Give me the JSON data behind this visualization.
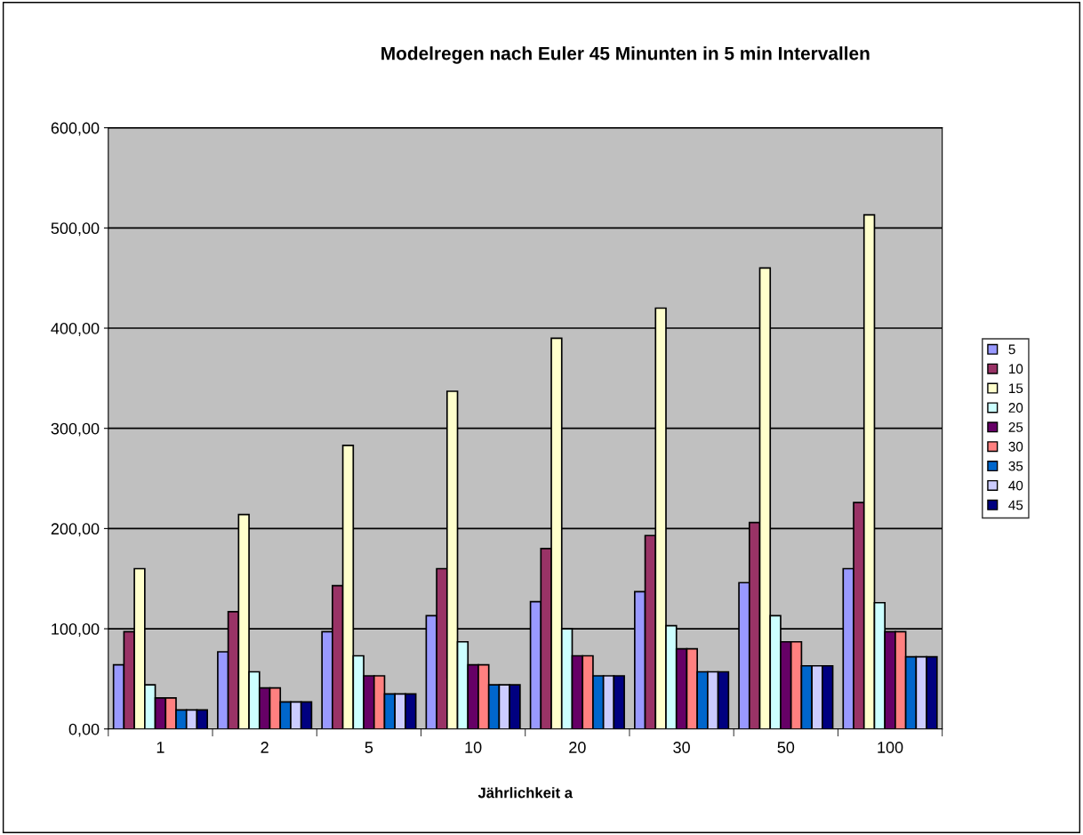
{
  "chart_data": {
    "type": "bar",
    "title": "Modelregen nach Euler 45 Minunten in 5 min Intervallen",
    "xlabel": "Jährlichkeit a",
    "categories": [
      "1",
      "2",
      "5",
      "10",
      "20",
      "30",
      "50",
      "100"
    ],
    "series": [
      {
        "name": "5",
        "color": "#9999ff",
        "values": [
          64,
          77,
          97,
          113,
          127,
          137,
          146,
          160
        ]
      },
      {
        "name": "10",
        "color": "#993366",
        "values": [
          97,
          117,
          143,
          160,
          180,
          193,
          206,
          226
        ]
      },
      {
        "name": "15",
        "color": "#ffffcc",
        "values": [
          160,
          214,
          283,
          337,
          390,
          420,
          460,
          513
        ]
      },
      {
        "name": "20",
        "color": "#ccffff",
        "values": [
          44,
          57,
          73,
          87,
          100,
          103,
          113,
          126
        ]
      },
      {
        "name": "25",
        "color": "#660066",
        "values": [
          31,
          41,
          53,
          64,
          73,
          80,
          87,
          97
        ]
      },
      {
        "name": "30",
        "color": "#ff8080",
        "values": [
          31,
          41,
          53,
          64,
          73,
          80,
          87,
          97
        ]
      },
      {
        "name": "35",
        "color": "#0066cc",
        "values": [
          19,
          27,
          35,
          44,
          53,
          57,
          63,
          72
        ]
      },
      {
        "name": "40",
        "color": "#ccccff",
        "values": [
          19,
          27,
          35,
          44,
          53,
          57,
          63,
          72
        ]
      },
      {
        "name": "45",
        "color": "#000080",
        "values": [
          19,
          27,
          35,
          44,
          53,
          57,
          63,
          72
        ]
      }
    ],
    "ylim": [
      0,
      600
    ],
    "yticks": [
      {
        "value": 0,
        "label": "0,00"
      },
      {
        "value": 100,
        "label": "100,00"
      },
      {
        "value": 200,
        "label": "200,00"
      },
      {
        "value": 300,
        "label": "300,00"
      },
      {
        "value": 400,
        "label": "400,00"
      },
      {
        "value": 500,
        "label": "500,00"
      },
      {
        "value": 600,
        "label": "600,00"
      }
    ],
    "grid": "y",
    "legend": "right"
  }
}
